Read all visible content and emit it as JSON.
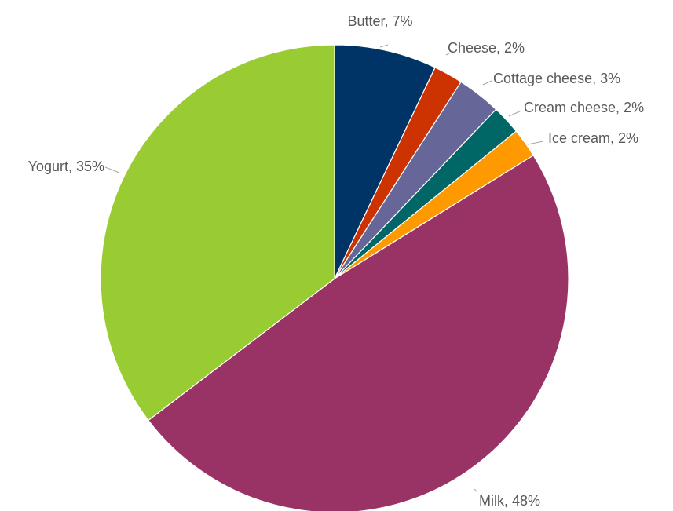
{
  "chart_data": {
    "type": "pie",
    "start_angle_deg": 0,
    "direction": "clockwise",
    "slices": [
      {
        "category": "Butter",
        "value": 7,
        "label": "Butter, 7%",
        "color": "#003366"
      },
      {
        "category": "Cheese",
        "value": 2,
        "label": "Cheese, 2%",
        "color": "#cc3300"
      },
      {
        "category": "Cottage cheese",
        "value": 3,
        "label": "Cottage cheese, 3%",
        "color": "#666699"
      },
      {
        "category": "Cream cheese",
        "value": 2,
        "label": "Cream cheese, 2%",
        "color": "#006666"
      },
      {
        "category": "Ice cream",
        "value": 2,
        "label": "Ice cream, 2%",
        "color": "#ff9900"
      },
      {
        "category": "Milk",
        "value": 48,
        "label": "Milk, 48%",
        "color": "#993366"
      },
      {
        "category": "Yogurt",
        "value": 35,
        "label": "Yogurt, 35%",
        "color": "#99cc33"
      }
    ],
    "title": "",
    "legend": "none",
    "data_labels": "outside with leader lines"
  }
}
